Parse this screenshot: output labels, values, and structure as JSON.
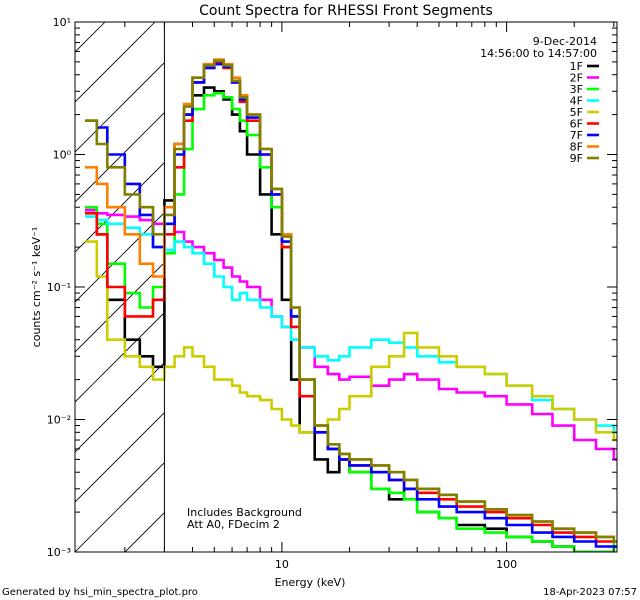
{
  "chart_data": {
    "type": "line",
    "title": "Count Spectra for RHESSI Front Segments",
    "xlabel": "Energy (keV)",
    "ylabel": "counts cm⁻² s⁻¹ keV⁻¹",
    "xscale": "log",
    "yscale": "log",
    "xlim": [
      1.2,
      310
    ],
    "ylim": [
      0.001,
      10
    ],
    "x_tick_labels": [
      "10",
      "100"
    ],
    "y_tick_labels": [
      "10⁻³",
      "10⁻²",
      "10⁻¹",
      "10⁰",
      "10¹"
    ],
    "shaded_region_max_energy": 3,
    "date": "9-Dec-2014",
    "time_range": "14:56:00 to 14:57:00",
    "annotations": [
      "Includes Background",
      "Att A0, FDecim 2"
    ],
    "footer_left": "Generated by hsi_min_spectra_plot.pro",
    "footer_right": "18-Apr-2023 07:57",
    "legend_position": "top-right",
    "energy_bins": [
      1.33,
      1.5,
      1.67,
      2.0,
      2.33,
      2.67,
      3.0,
      3.33,
      3.67,
      4.0,
      4.5,
      5.0,
      5.5,
      6.0,
      6.5,
      7.0,
      8.0,
      9.0,
      10.0,
      11.0,
      12.0,
      14.0,
      16.0,
      18.0,
      20.0,
      25.0,
      30.0,
      35.0,
      40.0,
      50.0,
      60.0,
      80.0,
      100.0,
      130.0,
      160.0,
      200.0,
      250.0,
      300.0
    ],
    "series": [
      {
        "name": "1F",
        "color": "#000000",
        "values": [
          0.38,
          0.25,
          0.08,
          0.04,
          0.03,
          0.025,
          0.45,
          1.2,
          2.0,
          2.8,
          3.2,
          3.0,
          2.6,
          2.0,
          1.5,
          1.0,
          0.5,
          0.25,
          0.08,
          0.02,
          0.008,
          0.005,
          0.004,
          0.005,
          0.004,
          0.003,
          0.0025,
          0.003,
          0.002,
          0.0018,
          0.0016,
          0.0015,
          0.0013,
          0.0012,
          0.0011,
          0.001,
          0.001,
          0.0011
        ]
      },
      {
        "name": "2F",
        "color": "#ff00ff",
        "values": [
          0.38,
          0.36,
          0.35,
          0.34,
          0.32,
          0.3,
          0.3,
          0.26,
          0.22,
          0.2,
          0.18,
          0.16,
          0.14,
          0.12,
          0.11,
          0.1,
          0.08,
          0.06,
          0.05,
          0.04,
          0.035,
          0.025,
          0.022,
          0.02,
          0.021,
          0.018,
          0.02,
          0.022,
          0.02,
          0.017,
          0.016,
          0.015,
          0.013,
          0.011,
          0.009,
          0.007,
          0.006,
          0.005
        ]
      },
      {
        "name": "3F",
        "color": "#00ff00",
        "values": [
          0.4,
          0.3,
          0.15,
          0.09,
          0.07,
          0.1,
          0.18,
          0.5,
          1.1,
          2.2,
          2.8,
          2.9,
          2.7,
          2.2,
          1.8,
          1.4,
          0.8,
          0.4,
          0.2,
          0.06,
          0.02,
          0.009,
          0.006,
          0.005,
          0.004,
          0.003,
          0.0028,
          0.0025,
          0.002,
          0.0018,
          0.0015,
          0.0014,
          0.0013,
          0.0012,
          0.0011,
          0.001,
          0.001,
          0.0012
        ]
      },
      {
        "name": "4F",
        "color": "#00ffff",
        "values": [
          0.34,
          0.32,
          0.3,
          0.28,
          0.25,
          0.2,
          0.19,
          0.22,
          0.2,
          0.18,
          0.15,
          0.12,
          0.1,
          0.08,
          0.09,
          0.08,
          0.07,
          0.06,
          0.05,
          0.04,
          0.035,
          0.03,
          0.028,
          0.03,
          0.035,
          0.04,
          0.038,
          0.035,
          0.03,
          0.027,
          0.025,
          0.022,
          0.018,
          0.014,
          0.012,
          0.01,
          0.009,
          0.008
        ]
      },
      {
        "name": "5F",
        "color": "#cccc00",
        "values": [
          0.22,
          0.12,
          0.04,
          0.03,
          0.025,
          0.02,
          0.025,
          0.03,
          0.035,
          0.03,
          0.025,
          0.02,
          0.02,
          0.018,
          0.016,
          0.015,
          0.014,
          0.012,
          0.01,
          0.009,
          0.008,
          0.009,
          0.01,
          0.012,
          0.015,
          0.025,
          0.03,
          0.045,
          0.035,
          0.03,
          0.025,
          0.022,
          0.018,
          0.015,
          0.012,
          0.01,
          0.008,
          0.007
        ]
      },
      {
        "name": "6F",
        "color": "#ff0000",
        "values": [
          0.36,
          0.25,
          0.1,
          0.06,
          0.06,
          0.08,
          0.25,
          0.8,
          1.8,
          3.5,
          4.5,
          5.0,
          4.5,
          3.5,
          2.5,
          1.8,
          1.0,
          0.5,
          0.2,
          0.05,
          0.015,
          0.008,
          0.006,
          0.005,
          0.0045,
          0.004,
          0.0035,
          0.003,
          0.0028,
          0.0025,
          0.0022,
          0.002,
          0.0018,
          0.0016,
          0.0014,
          0.0013,
          0.0012,
          0.0012
        ]
      },
      {
        "name": "7F",
        "color": "#0000ff",
        "values": [
          1.8,
          1.6,
          1.0,
          0.6,
          0.35,
          0.2,
          0.3,
          1.0,
          2.0,
          3.5,
          4.5,
          4.8,
          4.6,
          3.5,
          2.6,
          1.9,
          1.0,
          0.5,
          0.22,
          0.06,
          0.02,
          0.008,
          0.006,
          0.005,
          0.0045,
          0.004,
          0.0035,
          0.003,
          0.0025,
          0.0022,
          0.002,
          0.0018,
          0.0016,
          0.0014,
          0.0013,
          0.0012,
          0.0011,
          0.0011
        ]
      },
      {
        "name": "8F",
        "color": "#ff8000",
        "values": [
          0.8,
          0.6,
          0.4,
          0.25,
          0.15,
          0.12,
          0.4,
          1.2,
          2.4,
          3.8,
          4.8,
          5.2,
          4.8,
          3.8,
          2.8,
          2.0,
          1.1,
          0.55,
          0.25,
          0.07,
          0.02,
          0.009,
          0.0065,
          0.0055,
          0.005,
          0.0045,
          0.004,
          0.0035,
          0.003,
          0.0027,
          0.0024,
          0.0021,
          0.0019,
          0.0017,
          0.0015,
          0.0014,
          0.0013,
          0.0012
        ]
      },
      {
        "name": "9F",
        "color": "#808000",
        "values": [
          1.8,
          1.2,
          0.8,
          0.5,
          0.4,
          0.25,
          0.35,
          1.1,
          2.3,
          3.8,
          4.7,
          5.1,
          4.7,
          3.6,
          2.7,
          2.0,
          1.1,
          0.55,
          0.24,
          0.07,
          0.02,
          0.009,
          0.0065,
          0.0055,
          0.005,
          0.0045,
          0.004,
          0.0035,
          0.003,
          0.0027,
          0.0024,
          0.0021,
          0.0019,
          0.0017,
          0.0015,
          0.0014,
          0.0013,
          0.0012
        ]
      }
    ]
  }
}
